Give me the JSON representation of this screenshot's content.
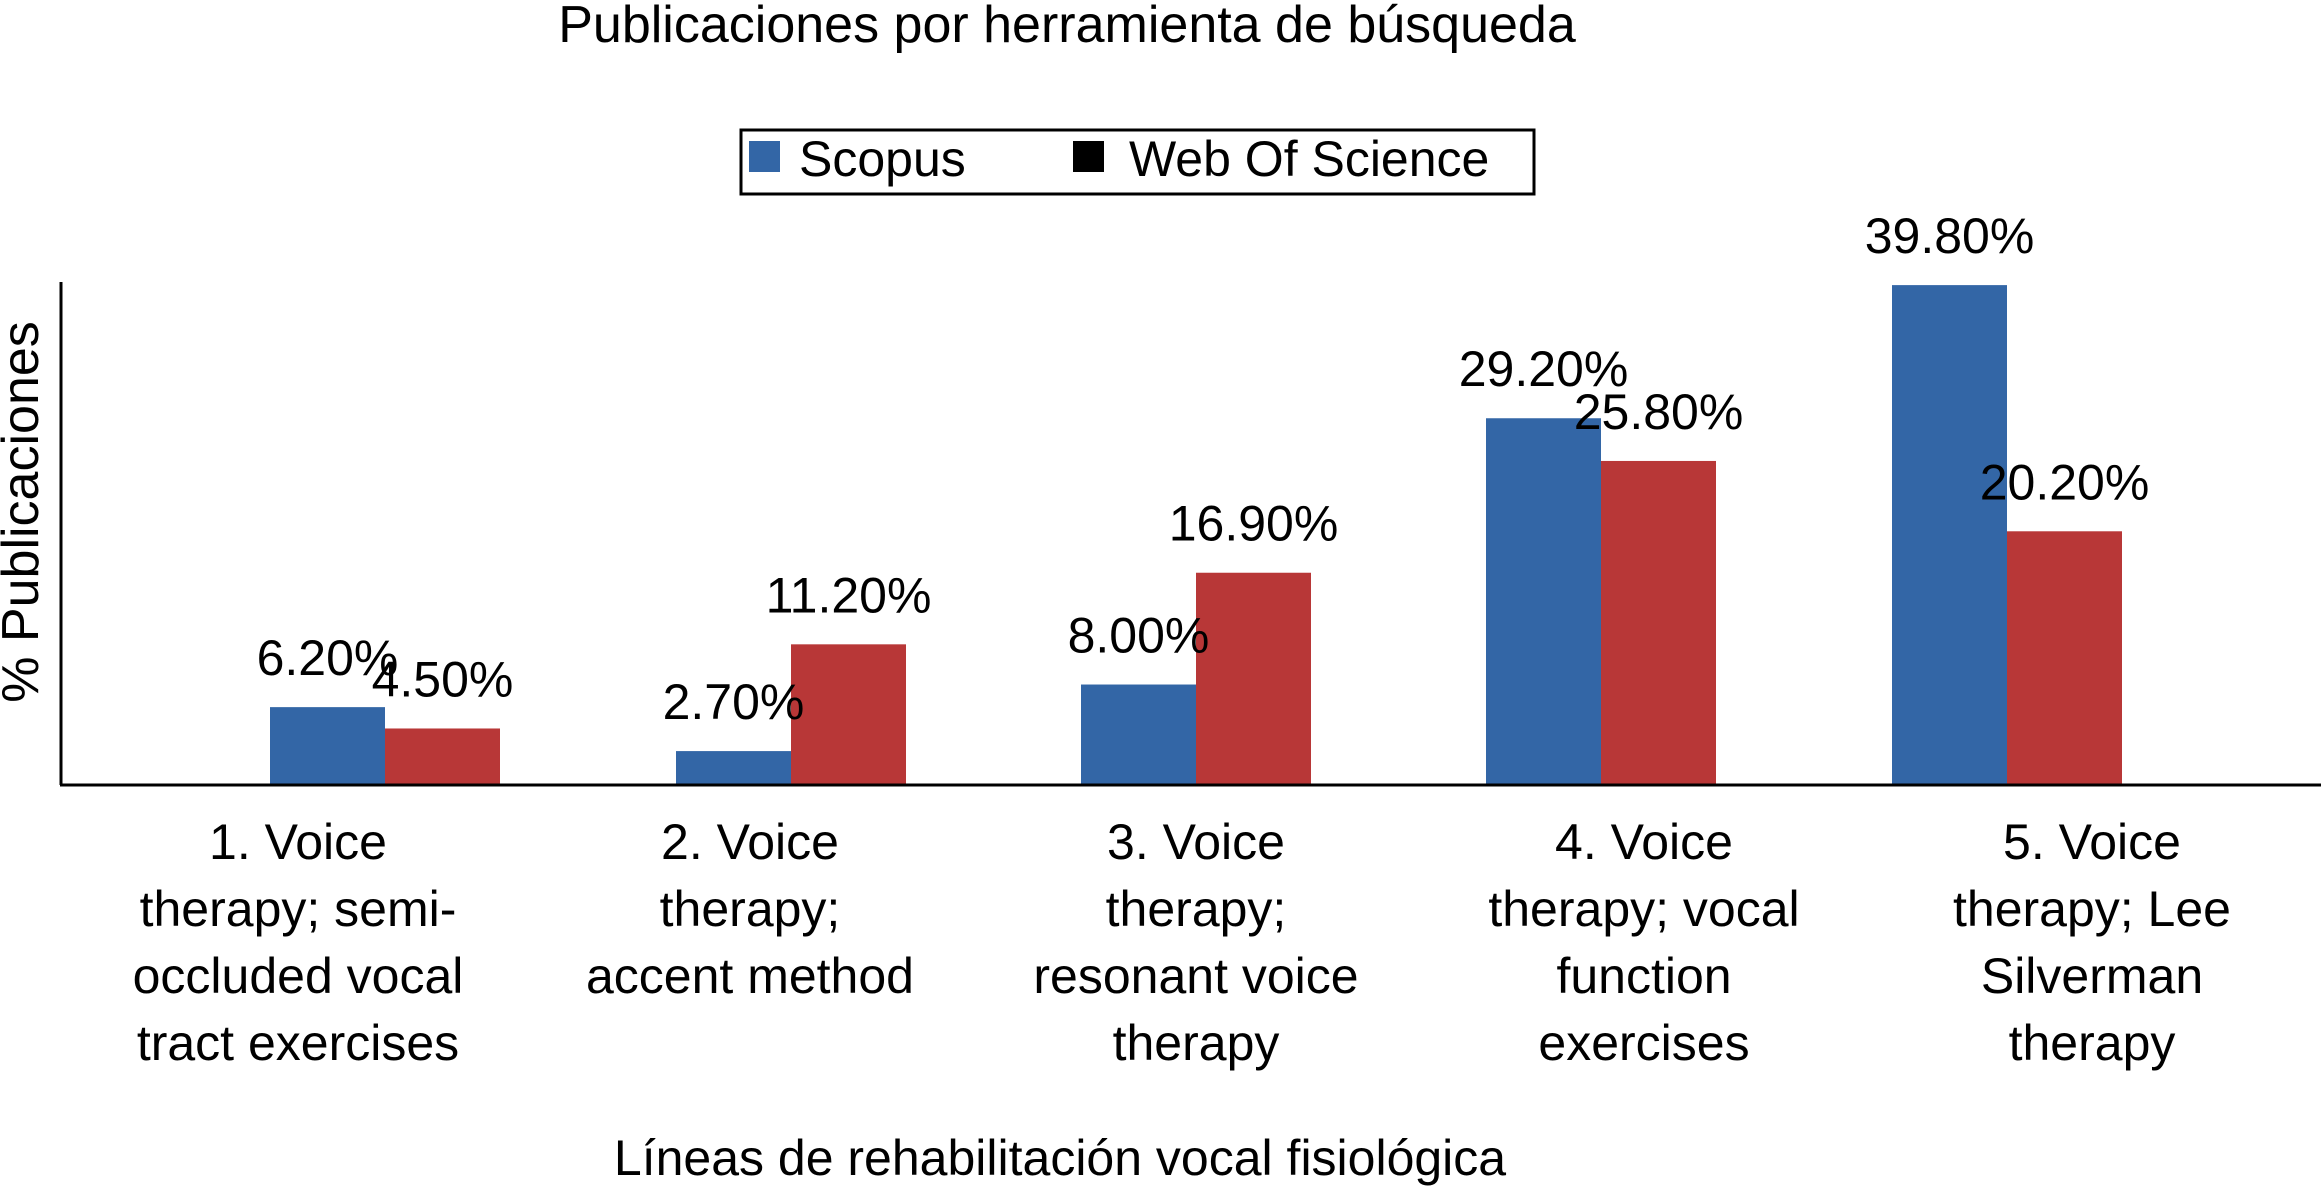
{
  "chart_data": {
    "type": "bar",
    "title": "Publicaciones por herramienta de búsqueda",
    "xlabel": "Líneas de rehabilitación vocal fisiológica",
    "ylabel": "% Publicaciones",
    "ylim": [
      0,
      40
    ],
    "grid": false,
    "legend_position": "top-center",
    "categories": [
      [
        "1. Voice",
        "therapy; semi-",
        "occluded vocal",
        "tract exercises"
      ],
      [
        "2. Voice",
        "therapy;",
        "accent method"
      ],
      [
        "3. Voice",
        "therapy;",
        "resonant voice",
        "therapy"
      ],
      [
        "4. Voice",
        "therapy; vocal",
        "function",
        "exercises"
      ],
      [
        "5. Voice",
        "therapy; Lee",
        "Silverman",
        "therapy"
      ]
    ],
    "series": [
      {
        "name": "Scopus",
        "color": "#3366a6",
        "legend_swatch_color": "#3366a6",
        "values": [
          6.2,
          2.7,
          8.0,
          29.2,
          39.8
        ],
        "labels": [
          "6.20%",
          "2.70%",
          "8.00%",
          "29.20%",
          "39.80%"
        ]
      },
      {
        "name": "Web Of Science",
        "color": "#b83737",
        "legend_swatch_color": "#000000",
        "values": [
          4.5,
          11.2,
          16.9,
          25.8,
          20.2
        ],
        "labels": [
          "4.50%",
          "11.20%",
          "16.90%",
          "25.80%",
          "20.20%"
        ]
      }
    ]
  }
}
